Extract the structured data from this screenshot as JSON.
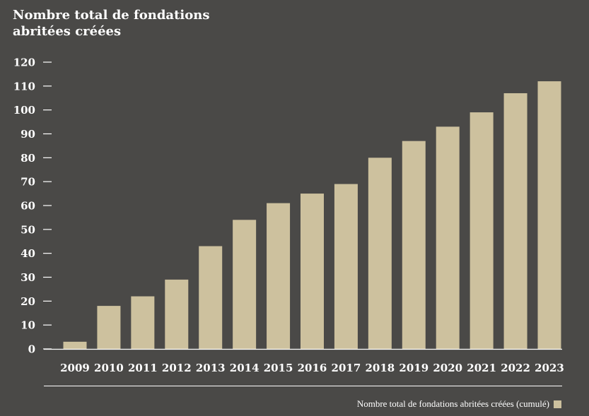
{
  "chart_data": {
    "type": "bar",
    "title": [
      "Nombre total de fondations",
      "abritées créées"
    ],
    "categories": [
      "2009",
      "2010",
      "2011",
      "2012",
      "2013",
      "2014",
      "2015",
      "2016",
      "2017",
      "2018",
      "2019",
      "2020",
      "2021",
      "2022",
      "2023"
    ],
    "series": [
      {
        "name": "Nombre total de fondations abritées créées (cumulé)",
        "values": [
          3,
          18,
          22,
          29,
          43,
          54,
          61,
          65,
          69,
          80,
          87,
          93,
          99,
          107,
          112
        ]
      }
    ],
    "ylim": [
      0,
      120
    ],
    "yticks": [
      0,
      10,
      20,
      30,
      40,
      50,
      60,
      70,
      80,
      90,
      100,
      110,
      120
    ],
    "xlabel": "",
    "ylabel": "",
    "grid": false,
    "legend_position": "bottom-right",
    "colors": {
      "background": "#4a4947",
      "bar": "#cdc19e",
      "axis": "#ffffff",
      "text": "#ffffff"
    }
  }
}
